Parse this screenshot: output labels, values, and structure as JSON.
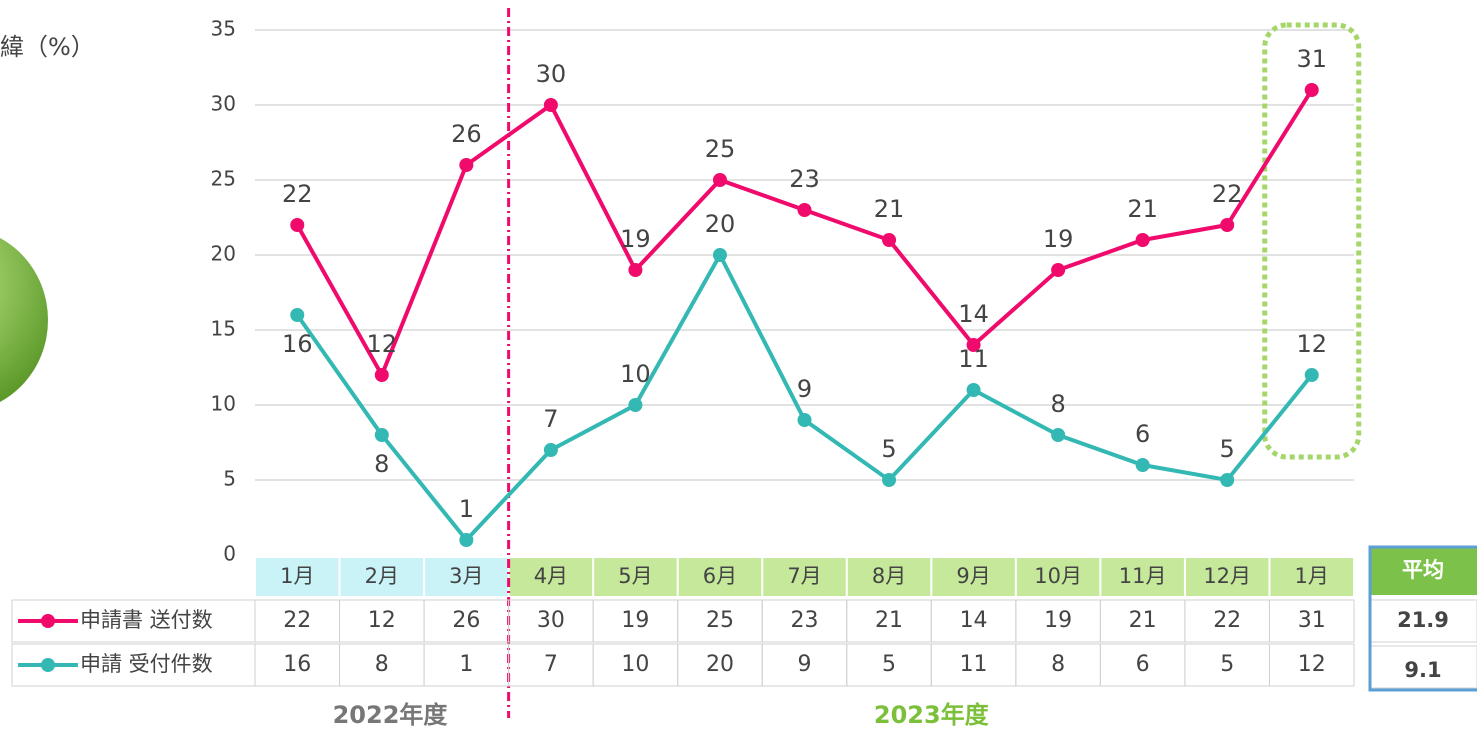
{
  "chart_data": {
    "type": "line",
    "title_fragment": "緯（%）",
    "groups": [
      {
        "label": "2022年度",
        "color": "#c9f3f7",
        "text_color": "#777777",
        "categories": [
          "1月",
          "2月",
          "3月"
        ]
      },
      {
        "label": "2023年度",
        "color": "#c6e89b",
        "text_color": "#7cbf3a",
        "categories": [
          "4月",
          "5月",
          "6月",
          "7月",
          "8月",
          "9月",
          "10月",
          "11月",
          "12月",
          "1月"
        ]
      }
    ],
    "series": [
      {
        "name": "申請書 送付数",
        "color": "#ef0a6c",
        "values": [
          22,
          12,
          26,
          30,
          19,
          25,
          23,
          21,
          14,
          19,
          21,
          22,
          31
        ],
        "average": 21.9
      },
      {
        "name": "申請 受付件数",
        "color": "#33b8b3",
        "values": [
          16,
          8,
          1,
          7,
          10,
          20,
          9,
          5,
          11,
          8,
          6,
          5,
          12
        ],
        "average": 9.1
      }
    ],
    "average_header": "平均",
    "ylim": [
      0,
      35
    ],
    "yticks": [
      0,
      5,
      10,
      15,
      20,
      25,
      30,
      35
    ],
    "grid": true
  }
}
